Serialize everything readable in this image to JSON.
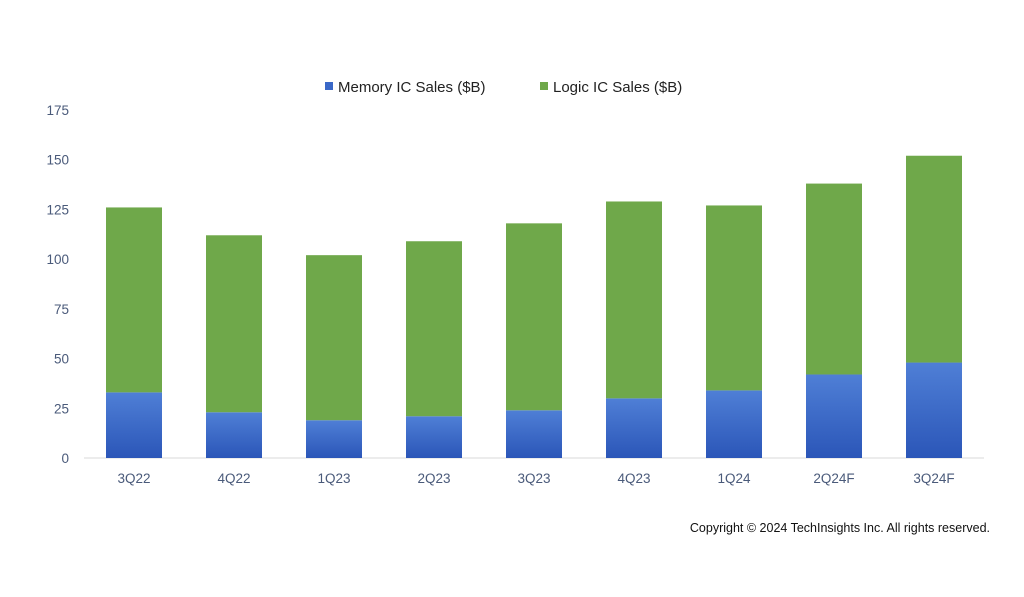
{
  "chart_data": {
    "type": "bar",
    "stacked": true,
    "categories": [
      "3Q22",
      "4Q22",
      "1Q23",
      "2Q23",
      "3Q23",
      "4Q23",
      "1Q24",
      "2Q24F",
      "3Q24F"
    ],
    "series": [
      {
        "name": "Memory IC Sales ($B)",
        "color": "#3a68c8",
        "values": [
          33,
          23,
          19,
          21,
          24,
          30,
          34,
          42,
          48
        ]
      },
      {
        "name": "Logic IC Sales ($B)",
        "color": "#6fa84a",
        "values": [
          93,
          89,
          83,
          88,
          94,
          99,
          93,
          96,
          104
        ]
      }
    ],
    "ylim": [
      0,
      175
    ],
    "yticks": [
      0,
      25,
      50,
      75,
      100,
      125,
      150,
      175
    ],
    "grid": false,
    "legend": "top-center",
    "title": "",
    "xlabel": "",
    "ylabel": ""
  },
  "footer": {
    "copyright": "Copyright © 2024 TechInsights Inc.  All rights reserved."
  }
}
